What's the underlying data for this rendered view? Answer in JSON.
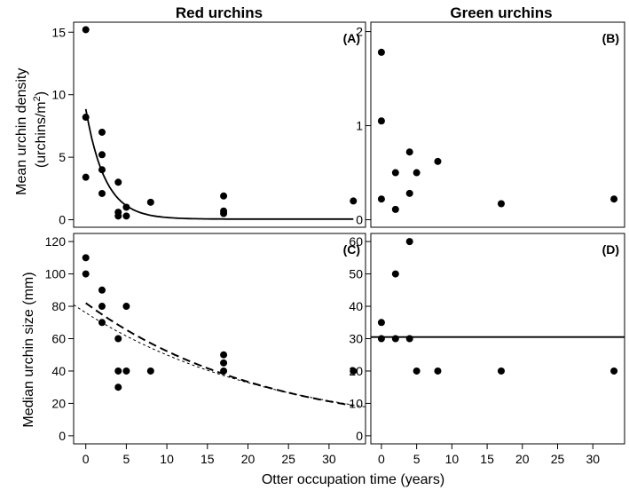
{
  "columns": [
    "Red urchins",
    "Green urchins"
  ],
  "xlabel": "Otter occupation time (years)",
  "ylabel_top": [
    "Mean urchin density",
    "(urchins/m",
    "2",
    ")"
  ],
  "ylabel_bottom": "Median urchin size (mm)",
  "chart_data": [
    {
      "type": "scatter",
      "panel": "(A)",
      "xlim": [
        -1.5,
        34.5
      ],
      "ylim": [
        -0.6,
        15.8
      ],
      "xticks": [
        0,
        5,
        10,
        15,
        20,
        25,
        30
      ],
      "yticks": [
        0,
        5,
        10,
        15
      ],
      "points": [
        [
          0,
          15.2
        ],
        [
          0,
          8.2
        ],
        [
          0,
          3.4
        ],
        [
          2,
          7.0
        ],
        [
          2,
          5.2
        ],
        [
          2,
          4.0
        ],
        [
          2,
          2.1
        ],
        [
          4,
          3.0
        ],
        [
          4,
          0.6
        ],
        [
          4,
          0.3
        ],
        [
          5,
          1.0
        ],
        [
          5,
          0.3
        ],
        [
          8,
          1.4
        ],
        [
          17,
          1.9
        ],
        [
          17,
          0.7
        ],
        [
          17,
          0.5
        ],
        [
          33,
          1.5
        ]
      ],
      "fits": [
        {
          "style": "solid",
          "model": "exp",
          "a": 8.8,
          "b": 0.42,
          "c": 0.05,
          "x_range": [
            0,
            33
          ]
        }
      ]
    },
    {
      "type": "scatter",
      "panel": "(B)",
      "xlim": [
        -1.5,
        34.5
      ],
      "ylim": [
        -0.08,
        2.1
      ],
      "xticks": [
        0,
        5,
        10,
        15,
        20,
        25,
        30
      ],
      "yticks": [
        0,
        1,
        2
      ],
      "points": [
        [
          0,
          1.78
        ],
        [
          0,
          1.05
        ],
        [
          0,
          0.22
        ],
        [
          2,
          0.5
        ],
        [
          2,
          0.11
        ],
        [
          4,
          0.72
        ],
        [
          4,
          0.28
        ],
        [
          5,
          0.5
        ],
        [
          8,
          0.62
        ],
        [
          17,
          0.17
        ],
        [
          33,
          0.22
        ]
      ],
      "fits": []
    },
    {
      "type": "scatter",
      "panel": "(C)",
      "xlim": [
        -1.5,
        34.5
      ],
      "ylim": [
        -5,
        125
      ],
      "xticks": [
        0,
        5,
        10,
        15,
        20,
        25,
        30
      ],
      "yticks": [
        0,
        20,
        40,
        60,
        80,
        100,
        120
      ],
      "points": [
        [
          0,
          110
        ],
        [
          0,
          100
        ],
        [
          2,
          90
        ],
        [
          2,
          80
        ],
        [
          2,
          70
        ],
        [
          4,
          60
        ],
        [
          4,
          40
        ],
        [
          4,
          30
        ],
        [
          5,
          80
        ],
        [
          5,
          40
        ],
        [
          8,
          40
        ],
        [
          17,
          50
        ],
        [
          17,
          45
        ],
        [
          17,
          40
        ],
        [
          33,
          40
        ]
      ],
      "fits": [
        {
          "style": "dashed",
          "model": "exp",
          "a": 82,
          "b": 0.045,
          "c": 0,
          "x_range": [
            0,
            33
          ]
        },
        {
          "style": "dotted",
          "model": "exp",
          "a": 76,
          "b": 0.042,
          "c": 0,
          "x_range": [
            -1.5,
            34.5
          ]
        }
      ]
    },
    {
      "type": "scatter",
      "panel": "(D)",
      "xlim": [
        -1.5,
        34.5
      ],
      "ylim": [
        -2.5,
        62.5
      ],
      "xticks": [
        0,
        5,
        10,
        15,
        20,
        25,
        30
      ],
      "yticks": [
        0,
        10,
        20,
        30,
        40,
        50,
        60
      ],
      "points": [
        [
          0,
          35
        ],
        [
          0,
          30
        ],
        [
          2,
          50
        ],
        [
          2,
          30
        ],
        [
          4,
          60
        ],
        [
          4,
          30
        ],
        [
          5,
          20
        ],
        [
          8,
          20
        ],
        [
          17,
          20
        ],
        [
          33,
          20
        ]
      ],
      "fits": [
        {
          "style": "solid",
          "model": "const",
          "value": 30.5,
          "x_range": [
            -1.5,
            34.5
          ]
        }
      ]
    }
  ]
}
